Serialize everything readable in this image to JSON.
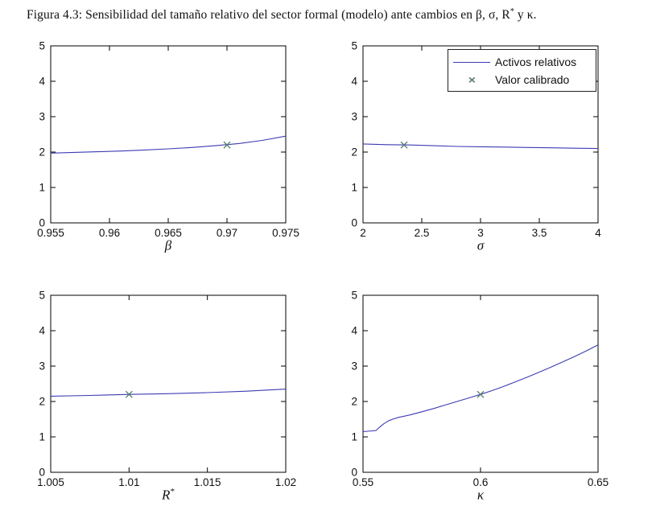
{
  "caption": {
    "prefix": "Figura 4.3: Sensibilidad del tamaño relativo del sector formal (modelo) ante cambios en β, σ, R",
    "sup": "*",
    "suffix": " y κ."
  },
  "colors": {
    "line_color": "#3c3cb4",
    "marker_color": "#567d68",
    "axis_color": "#000000"
  },
  "legend": {
    "items": [
      {
        "label": "Activos relativos",
        "type": "line"
      },
      {
        "label": "Valor calibrado",
        "type": "x-marker"
      }
    ]
  },
  "chart_data": [
    {
      "type": "line",
      "xlabel": "β",
      "xlim": [
        0.955,
        0.975
      ],
      "ylim": [
        0,
        5
      ],
      "xtick_values": [
        0.955,
        0.96,
        0.965,
        0.97,
        0.975
      ],
      "xtick_labels": [
        "0.955",
        "0.96",
        "0.965",
        "0.97",
        "0.975"
      ],
      "ytick_values": [
        0,
        1,
        2,
        3,
        4,
        5
      ],
      "ytick_labels": [
        "0",
        "1",
        "2",
        "3",
        "4",
        "5"
      ],
      "series": [
        {
          "name": "Activos relativos",
          "x": [
            0.955,
            0.957,
            0.959,
            0.961,
            0.963,
            0.965,
            0.967,
            0.969,
            0.971,
            0.973,
            0.975
          ],
          "y": [
            1.97,
            1.99,
            2.01,
            2.03,
            2.06,
            2.09,
            2.13,
            2.18,
            2.24,
            2.33,
            2.45
          ]
        }
      ],
      "calibrated_point": {
        "name": "Valor calibrado",
        "x": 0.97,
        "y": 2.2
      }
    },
    {
      "type": "line",
      "xlabel": "σ",
      "xlim": [
        2,
        4
      ],
      "ylim": [
        0,
        5
      ],
      "xtick_values": [
        2,
        2.5,
        3,
        3.5,
        4
      ],
      "xtick_labels": [
        "2",
        "2.5",
        "3",
        "3.5",
        "4"
      ],
      "ytick_values": [
        0,
        1,
        2,
        3,
        4,
        5
      ],
      "ytick_labels": [
        "0",
        "1",
        "2",
        "3",
        "4",
        "5"
      ],
      "series": [
        {
          "name": "Activos relativos",
          "x": [
            2,
            2.2,
            2.4,
            2.6,
            2.8,
            3,
            3.2,
            3.4,
            3.6,
            3.8,
            4
          ],
          "y": [
            2.23,
            2.21,
            2.2,
            2.18,
            2.16,
            2.15,
            2.14,
            2.13,
            2.12,
            2.11,
            2.1
          ]
        }
      ],
      "calibrated_point": {
        "name": "Valor calibrado",
        "x": 2.35,
        "y": 2.2
      }
    },
    {
      "type": "line",
      "xlabel": "R",
      "xlabel_sup": "*",
      "xlim": [
        1.005,
        1.02
      ],
      "ylim": [
        0,
        5
      ],
      "xtick_values": [
        1.005,
        1.01,
        1.015,
        1.02
      ],
      "xtick_labels": [
        "1.005",
        "1.01",
        "1.015",
        "1.02"
      ],
      "ytick_values": [
        0,
        1,
        2,
        3,
        4,
        5
      ],
      "ytick_labels": [
        "0",
        "1",
        "2",
        "3",
        "4",
        "5"
      ],
      "series": [
        {
          "name": "Activos relativos",
          "x": [
            1.005,
            1.0075,
            1.01,
            1.0125,
            1.015,
            1.0175,
            1.02
          ],
          "y": [
            2.15,
            2.17,
            2.2,
            2.22,
            2.25,
            2.29,
            2.35
          ]
        }
      ],
      "calibrated_point": {
        "name": "Valor calibrado",
        "x": 1.01,
        "y": 2.2
      }
    },
    {
      "type": "line",
      "xlabel": "κ",
      "xlim": [
        0.55,
        0.65
      ],
      "ylim": [
        0,
        5
      ],
      "xtick_values": [
        0.55,
        0.6,
        0.65
      ],
      "xtick_labels": [
        "0.55",
        "0.6",
        "0.65"
      ],
      "ytick_values": [
        0,
        1,
        2,
        3,
        4,
        5
      ],
      "ytick_labels": [
        "0",
        "1",
        "2",
        "3",
        "4",
        "5"
      ],
      "series": [
        {
          "name": "Activos relativos",
          "x": [
            0.55,
            0.552,
            0.554,
            0.5555,
            0.557,
            0.559,
            0.561,
            0.563,
            0.565,
            0.57,
            0.575,
            0.58,
            0.585,
            0.59,
            0.595,
            0.6,
            0.605,
            0.61,
            0.615,
            0.62,
            0.625,
            0.63,
            0.635,
            0.64,
            0.645,
            0.65
          ],
          "y": [
            1.15,
            1.16,
            1.17,
            1.18,
            1.27,
            1.38,
            1.46,
            1.51,
            1.55,
            1.62,
            1.71,
            1.8,
            1.9,
            2.0,
            2.1,
            2.2,
            2.31,
            2.43,
            2.56,
            2.69,
            2.83,
            2.97,
            3.12,
            3.27,
            3.43,
            3.6
          ]
        }
      ],
      "calibrated_point": {
        "name": "Valor calibrado",
        "x": 0.6,
        "y": 2.2
      }
    }
  ]
}
